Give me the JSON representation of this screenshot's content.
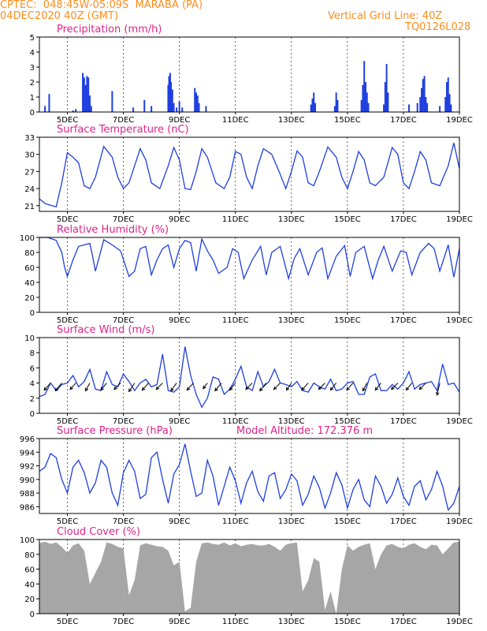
{
  "header": {
    "line1_left": "CPTEC:  048:45W-05:09S  MARABA (PA)",
    "line2_left": "04DEC2020 40Z (GMT)",
    "line2_right": "Vertical Grid Line: 40Z",
    "line3_right": "TQ0126L028"
  },
  "colors": {
    "header": "#ff8c1a",
    "title": "#e0228a",
    "series": "#1f3fe0",
    "cloud": "#a6a6a6"
  },
  "x_axis": {
    "labels": [
      "5DEC",
      "7DEC",
      "9DEC",
      "11DEC",
      "13DEC",
      "15DEC",
      "17DEC",
      "19DEC"
    ],
    "positions_days": [
      1,
      3,
      5,
      7,
      9,
      11,
      13,
      15
    ],
    "range_days": [
      0,
      15
    ]
  },
  "chart_data": [
    {
      "id": "precip",
      "type": "bar",
      "title": "Precipitation (mm/h)",
      "extra_title": "",
      "ylim": [
        0,
        5
      ],
      "yticks": [
        0,
        1,
        2,
        3,
        4,
        5
      ],
      "bars": [
        [
          0.2,
          0.4
        ],
        [
          0.35,
          1.2
        ],
        [
          1.2,
          0.1
        ],
        [
          1.3,
          0.2
        ],
        [
          1.55,
          2.6
        ],
        [
          1.6,
          2.3
        ],
        [
          1.65,
          1.8
        ],
        [
          1.7,
          2.4
        ],
        [
          1.75,
          2.3
        ],
        [
          1.8,
          1.1
        ],
        [
          1.85,
          0.4
        ],
        [
          2.6,
          1.4
        ],
        [
          3.35,
          0.3
        ],
        [
          3.75,
          0.8
        ],
        [
          4.0,
          0.4
        ],
        [
          4.6,
          1.8
        ],
        [
          4.63,
          2.4
        ],
        [
          4.67,
          2.6
        ],
        [
          4.7,
          2.0
        ],
        [
          4.75,
          1.5
        ],
        [
          4.8,
          0.6
        ],
        [
          4.9,
          0.3
        ],
        [
          5.0,
          0.7
        ],
        [
          5.1,
          0.3
        ],
        [
          5.55,
          1.6
        ],
        [
          5.6,
          1.3
        ],
        [
          5.65,
          1.1
        ],
        [
          5.7,
          0.6
        ],
        [
          5.95,
          0.4
        ],
        [
          9.7,
          0.5
        ],
        [
          9.75,
          0.9
        ],
        [
          9.8,
          1.3
        ],
        [
          9.85,
          0.6
        ],
        [
          10.55,
          0.4
        ],
        [
          10.6,
          1.3
        ],
        [
          10.65,
          0.8
        ],
        [
          11.5,
          0.8
        ],
        [
          11.55,
          1.8
        ],
        [
          11.6,
          3.4
        ],
        [
          11.65,
          2.0
        ],
        [
          11.7,
          1.3
        ],
        [
          11.75,
          0.6
        ],
        [
          12.3,
          0.5
        ],
        [
          12.35,
          2.0
        ],
        [
          12.4,
          3.2
        ],
        [
          12.45,
          1.3
        ],
        [
          13.2,
          0.5
        ],
        [
          13.5,
          0.6
        ],
        [
          13.6,
          1.0
        ],
        [
          13.65,
          1.6
        ],
        [
          13.7,
          2.2
        ],
        [
          13.75,
          2.4
        ],
        [
          13.8,
          1.0
        ],
        [
          13.85,
          0.6
        ],
        [
          14.3,
          0.4
        ],
        [
          14.5,
          1.0
        ],
        [
          14.55,
          2.0
        ],
        [
          14.6,
          2.3
        ],
        [
          14.65,
          1.2
        ],
        [
          14.7,
          0.5
        ]
      ]
    },
    {
      "id": "temp",
      "type": "line",
      "title": "Surface Temperature (nC)",
      "extra_title": "",
      "ylim": [
        20,
        33
      ],
      "yticks": [
        21,
        24,
        27,
        30,
        33
      ],
      "x": [
        0,
        0.1,
        0.2,
        0.3,
        0.45,
        0.6,
        0.8,
        1.0,
        1.2,
        1.4,
        1.6,
        1.8,
        2.0,
        2.3,
        2.6,
        2.8,
        3.0,
        3.2,
        3.4,
        3.6,
        3.8,
        4.0,
        4.3,
        4.6,
        4.8,
        5.0,
        5.2,
        5.4,
        5.6,
        5.8,
        6.0,
        6.3,
        6.6,
        6.8,
        7.0,
        7.2,
        7.4,
        7.6,
        7.8,
        8.0,
        8.3,
        8.6,
        8.8,
        9.0,
        9.2,
        9.4,
        9.6,
        9.8,
        10.0,
        10.3,
        10.6,
        10.8,
        11.0,
        11.2,
        11.4,
        11.6,
        11.8,
        12.0,
        12.3,
        12.6,
        12.8,
        13.0,
        13.2,
        13.4,
        13.6,
        13.8,
        14.0,
        14.3,
        14.6,
        14.8,
        15.0
      ],
      "y": [
        22.2,
        21.8,
        21.4,
        21.2,
        21.0,
        20.8,
        25.0,
        30.3,
        29.5,
        28.5,
        24.5,
        24.0,
        26.0,
        31.4,
        29.5,
        26.0,
        24.0,
        25.0,
        28.0,
        31.0,
        29.0,
        25.0,
        24.0,
        28.0,
        31.2,
        29.0,
        24.0,
        23.8,
        27.0,
        31.0,
        29.5,
        25.0,
        24.0,
        26.0,
        30.5,
        30.0,
        26.0,
        24.0,
        28.0,
        31.0,
        30.0,
        26.5,
        24.0,
        27.0,
        30.6,
        29.5,
        25.0,
        24.5,
        27.0,
        31.3,
        29.5,
        26.0,
        24.0,
        27.0,
        30.5,
        29.0,
        25.0,
        24.5,
        26.0,
        31.2,
        30.0,
        25.0,
        24.0,
        27.0,
        30.5,
        29.0,
        25.0,
        24.5,
        28.0,
        32.0,
        27.5
      ]
    },
    {
      "id": "rh",
      "type": "line",
      "title": "Relative Humidity (%)",
      "extra_title": "",
      "ylim": [
        0,
        100
      ],
      "yticks": [
        0,
        20,
        40,
        60,
        80,
        100
      ],
      "x": [
        0,
        0.3,
        0.6,
        0.8,
        0.9,
        1.0,
        1.2,
        1.4,
        1.6,
        1.8,
        1.9,
        2.0,
        2.3,
        2.6,
        2.9,
        3.2,
        3.4,
        3.6,
        3.8,
        4.0,
        4.2,
        4.4,
        4.6,
        4.8,
        5.0,
        5.2,
        5.4,
        5.6,
        5.8,
        6.0,
        6.2,
        6.4,
        6.7,
        6.9,
        7.1,
        7.3,
        7.6,
        7.9,
        8.1,
        8.3,
        8.6,
        8.9,
        9.1,
        9.3,
        9.6,
        9.9,
        10.1,
        10.3,
        10.6,
        10.9,
        11.1,
        11.3,
        11.6,
        11.9,
        12.1,
        12.3,
        12.6,
        12.9,
        13.1,
        13.3,
        13.6,
        13.9,
        14.1,
        14.3,
        14.6,
        14.8,
        15.0
      ],
      "y": [
        100,
        100,
        96,
        80,
        60,
        48,
        70,
        88,
        90,
        92,
        75,
        55,
        97,
        90,
        82,
        48,
        55,
        85,
        88,
        50,
        70,
        85,
        90,
        60,
        85,
        96,
        93,
        55,
        98,
        82,
        70,
        52,
        60,
        85,
        80,
        45,
        70,
        88,
        50,
        80,
        88,
        45,
        72,
        85,
        50,
        80,
        86,
        45,
        75,
        89,
        48,
        80,
        88,
        45,
        70,
        88,
        55,
        82,
        80,
        50,
        80,
        92,
        85,
        55,
        90,
        47,
        85
      ]
    },
    {
      "id": "wind",
      "type": "line",
      "title": "Surface Wind (m/s)",
      "extra_title": "",
      "ylim": [
        0,
        10
      ],
      "yticks": [
        0,
        2,
        4,
        6,
        8,
        10
      ],
      "x": [
        0,
        0.2,
        0.4,
        0.6,
        0.8,
        1.0,
        1.2,
        1.4,
        1.6,
        1.8,
        2.0,
        2.2,
        2.4,
        2.6,
        2.8,
        3.0,
        3.2,
        3.4,
        3.6,
        3.8,
        4.0,
        4.2,
        4.4,
        4.6,
        4.8,
        5.0,
        5.2,
        5.4,
        5.6,
        5.8,
        6.0,
        6.2,
        6.4,
        6.6,
        6.8,
        7.0,
        7.2,
        7.4,
        7.6,
        7.8,
        8.0,
        8.2,
        8.4,
        8.6,
        8.8,
        9.0,
        9.2,
        9.4,
        9.6,
        9.8,
        10.0,
        10.2,
        10.4,
        10.6,
        10.8,
        11.0,
        11.2,
        11.4,
        11.6,
        11.8,
        12.0,
        12.2,
        12.4,
        12.6,
        12.8,
        13.0,
        13.2,
        13.4,
        13.6,
        13.8,
        14.0,
        14.2,
        14.4,
        14.6,
        14.8,
        15.0
      ],
      "y": [
        2.2,
        2.5,
        4.0,
        3.0,
        3.8,
        4.0,
        5.0,
        3.5,
        4.2,
        5.8,
        3.2,
        3.0,
        5.5,
        3.8,
        3.5,
        5.2,
        4.2,
        3.0,
        4.0,
        4.5,
        3.5,
        3.8,
        7.8,
        3.0,
        2.8,
        3.5,
        8.8,
        5.0,
        2.5,
        0.8,
        2.0,
        4.8,
        4.5,
        2.5,
        3.2,
        4.5,
        6.2,
        3.5,
        3.0,
        5.5,
        3.5,
        4.2,
        5.8,
        4.0,
        3.8,
        3.5,
        4.2,
        3.0,
        2.8,
        4.0,
        3.5,
        3.2,
        4.5,
        3.0,
        3.2,
        4.0,
        4.2,
        2.5,
        2.5,
        4.8,
        5.2,
        3.0,
        3.0,
        3.8,
        3.2,
        4.0,
        5.5,
        3.2,
        3.8,
        4.0,
        4.2,
        3.0,
        6.5,
        3.8,
        4.0,
        2.8
      ],
      "arrows": [
        [
          0.4,
          -0.9,
          -1.0
        ],
        [
          0.8,
          -0.9,
          -1.1
        ],
        [
          1.3,
          -0.8,
          -0.9
        ],
        [
          1.8,
          -0.6,
          -1.1
        ],
        [
          2.4,
          -0.8,
          -1.0
        ],
        [
          2.9,
          -0.9,
          -0.9
        ],
        [
          3.4,
          -0.8,
          -1.2
        ],
        [
          3.9,
          -0.9,
          -1.0
        ],
        [
          4.4,
          -0.9,
          -0.9
        ],
        [
          4.9,
          -0.8,
          -1.1
        ],
        [
          5.5,
          -0.9,
          -1.0
        ],
        [
          6.0,
          -0.6,
          -0.8
        ],
        [
          6.5,
          -0.9,
          -1.1
        ],
        [
          7.0,
          -0.8,
          -1.0
        ],
        [
          7.6,
          -0.9,
          -0.9
        ],
        [
          8.1,
          -0.9,
          -1.1
        ],
        [
          8.6,
          -0.9,
          -0.9
        ],
        [
          9.0,
          -0.7,
          -1.0
        ],
        [
          9.6,
          -0.9,
          -1.0
        ],
        [
          10.2,
          -0.9,
          -0.9
        ],
        [
          10.6,
          -0.8,
          -1.0
        ],
        [
          11.2,
          -0.9,
          -1.0
        ],
        [
          11.7,
          -0.6,
          -1.1
        ],
        [
          12.2,
          -0.8,
          -1.0
        ],
        [
          12.8,
          -0.9,
          -0.9
        ],
        [
          13.3,
          -0.8,
          -1.0
        ],
        [
          13.8,
          -0.9,
          -0.9
        ],
        [
          14.3,
          -0.4,
          -1.7
        ]
      ]
    },
    {
      "id": "pres",
      "type": "line",
      "title": "Surface Pressure (hPa)",
      "extra_title": "Model Altitude: 172.376 m",
      "ylim": [
        985,
        996
      ],
      "yticks": [
        986,
        988,
        990,
        992,
        994,
        996
      ],
      "x": [
        0,
        0.2,
        0.4,
        0.6,
        0.8,
        1.0,
        1.2,
        1.4,
        1.6,
        1.8,
        2.0,
        2.2,
        2.4,
        2.6,
        2.8,
        3.0,
        3.2,
        3.4,
        3.6,
        3.8,
        4.0,
        4.2,
        4.4,
        4.6,
        4.8,
        5.0,
        5.2,
        5.4,
        5.6,
        5.8,
        6.0,
        6.2,
        6.4,
        6.6,
        6.8,
        7.0,
        7.2,
        7.4,
        7.6,
        7.8,
        8.0,
        8.2,
        8.4,
        8.6,
        8.8,
        9.0,
        9.2,
        9.4,
        9.6,
        9.8,
        10.0,
        10.2,
        10.4,
        10.6,
        10.8,
        11.0,
        11.2,
        11.4,
        11.6,
        11.8,
        12.0,
        12.2,
        12.4,
        12.6,
        12.8,
        13.0,
        13.2,
        13.4,
        13.6,
        13.8,
        14.0,
        14.2,
        14.4,
        14.6,
        14.8,
        15.0
      ],
      "y": [
        991.2,
        991.8,
        993.8,
        993.2,
        990.0,
        988.0,
        991.8,
        992.8,
        991.0,
        988.0,
        989.5,
        992.8,
        991.8,
        988.0,
        986.2,
        991.0,
        992.8,
        991.2,
        987.2,
        987.8,
        993.2,
        994.0,
        990.0,
        986.5,
        990.8,
        992.2,
        995.2,
        991.2,
        987.5,
        988.0,
        992.8,
        990.5,
        986.2,
        989.0,
        991.8,
        989.8,
        986.5,
        989.5,
        991.2,
        988.2,
        986.8,
        990.5,
        991.0,
        987.2,
        988.5,
        990.8,
        989.8,
        986.2,
        987.8,
        990.5,
        988.8,
        985.8,
        988.0,
        991.0,
        989.2,
        985.8,
        988.5,
        990.0,
        987.0,
        986.0,
        990.5,
        989.0,
        986.5,
        987.8,
        990.2,
        987.5,
        986.2,
        989.0,
        989.8,
        987.0,
        988.5,
        991.2,
        989.0,
        985.5,
        986.5,
        989.0
      ]
    },
    {
      "id": "cloud",
      "type": "area",
      "title": "Cloud Cover (%)",
      "extra_title": "",
      "ylim": [
        0,
        100
      ],
      "yticks": [
        0,
        20,
        40,
        60,
        80,
        100
      ],
      "x": [
        0,
        0.2,
        0.4,
        0.6,
        0.8,
        1.0,
        1.2,
        1.4,
        1.6,
        1.8,
        2.0,
        2.2,
        2.4,
        2.6,
        2.8,
        3.0,
        3.2,
        3.4,
        3.6,
        3.8,
        4.0,
        4.2,
        4.4,
        4.6,
        4.8,
        5.0,
        5.2,
        5.4,
        5.6,
        5.8,
        6.0,
        6.2,
        6.4,
        6.6,
        6.8,
        7.0,
        7.2,
        7.4,
        7.6,
        7.8,
        8.0,
        8.2,
        8.4,
        8.6,
        8.8,
        9.0,
        9.2,
        9.4,
        9.6,
        9.8,
        10.0,
        10.2,
        10.4,
        10.6,
        10.8,
        11.0,
        11.2,
        11.4,
        11.6,
        11.8,
        12.0,
        12.2,
        12.4,
        12.6,
        12.8,
        13.0,
        13.2,
        13.4,
        13.6,
        13.8,
        14.0,
        14.2,
        14.4,
        14.6,
        14.8,
        15.0
      ],
      "y": [
        95,
        97,
        94,
        96,
        90,
        82,
        92,
        95,
        85,
        40,
        55,
        70,
        96,
        94,
        90,
        88,
        25,
        45,
        92,
        95,
        93,
        91,
        90,
        85,
        65,
        70,
        3,
        8,
        70,
        95,
        96,
        94,
        93,
        96,
        92,
        95,
        91,
        93,
        94,
        92,
        92,
        94,
        90,
        85,
        93,
        95,
        96,
        30,
        45,
        75,
        70,
        5,
        30,
        0,
        60,
        92,
        85,
        90,
        93,
        95,
        60,
        80,
        92,
        94,
        90,
        88,
        93,
        95,
        90,
        87,
        93,
        92,
        80,
        88,
        96,
        97
      ]
    }
  ]
}
